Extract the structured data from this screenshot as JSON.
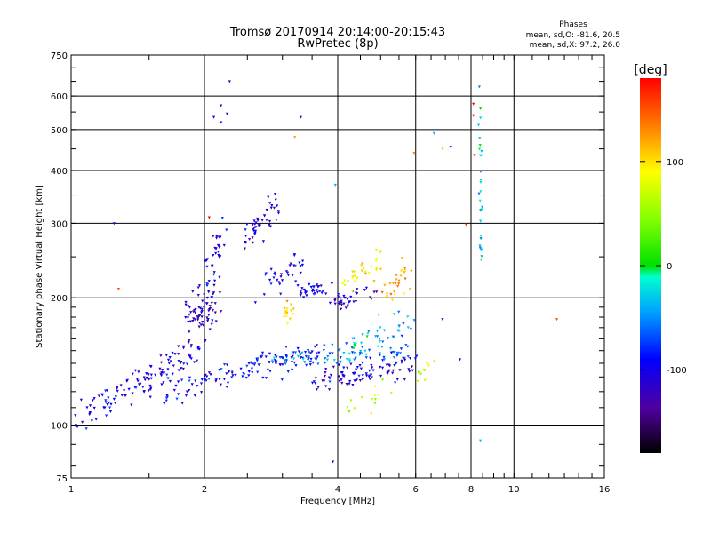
{
  "chart_data": {
    "type": "scatter",
    "title": "Tromsø 20170914 20:14:00-20:15:43",
    "subtitle": "RwPretec (8p)",
    "xlabel": "Frequency [MHz]",
    "ylabel": "Stationary phase Virtual Height [km]",
    "x_scale": "log",
    "y_scale": "log",
    "xlim": [
      1,
      16
    ],
    "ylim": [
      75,
      750
    ],
    "x_ticks": [
      "1",
      "2",
      "4",
      "6",
      "8",
      "10",
      "16"
    ],
    "y_ticks": [
      "75",
      "100",
      "200",
      "300",
      "400",
      "500",
      "600",
      "750"
    ],
    "grid": true,
    "stats": {
      "heading": "Phases",
      "line1": "mean, sd,O: -81.6, 20.5",
      "line2": "mean, sd,X:  97.2, 26.0"
    },
    "colorbar": {
      "label": "[deg]",
      "ticks": [
        "100",
        "0",
        "-100"
      ],
      "range": [
        -180,
        180
      ]
    },
    "clusters": [
      {
        "from": [
          1.05,
          105
        ],
        "to": [
          1.95,
          150
        ],
        "n": 130,
        "scatter": [
          0.025,
          0.04
        ],
        "phase": -105
      },
      {
        "from": [
          1.6,
          118
        ],
        "to": [
          3.6,
          150
        ],
        "n": 120,
        "scatter": [
          0.03,
          0.035
        ],
        "phase": -95
      },
      {
        "from": [
          2.6,
          142
        ],
        "to": [
          5.8,
          150
        ],
        "n": 80,
        "scatter": [
          0.03,
          0.03
        ],
        "phase": -60
      },
      {
        "from": [
          3.6,
          128
        ],
        "to": [
          5.8,
          138
        ],
        "n": 90,
        "scatter": [
          0.03,
          0.03
        ],
        "phase": -110
      },
      {
        "from": [
          1.85,
          170
        ],
        "to": [
          2.1,
          200
        ],
        "n": 70,
        "scatter": [
          0.03,
          0.05
        ],
        "phase": -115
      },
      {
        "from": [
          2.05,
          220
        ],
        "to": [
          2.2,
          280
        ],
        "n": 35,
        "scatter": [
          0.02,
          0.06
        ],
        "phase": -100
      },
      {
        "from": [
          2.5,
          280
        ],
        "to": [
          2.9,
          340
        ],
        "n": 45,
        "scatter": [
          0.02,
          0.04
        ],
        "phase": -110
      },
      {
        "from": [
          2.75,
          210
        ],
        "to": [
          3.3,
          240
        ],
        "n": 35,
        "scatter": [
          0.025,
          0.04
        ],
        "phase": -100
      },
      {
        "from": [
          3.3,
          205
        ],
        "to": [
          3.8,
          215
        ],
        "n": 30,
        "scatter": [
          0.02,
          0.02
        ],
        "phase": -105
      },
      {
        "from": [
          3.9,
          195
        ],
        "to": [
          4.8,
          205
        ],
        "n": 35,
        "scatter": [
          0.02,
          0.02
        ],
        "phase": -110
      },
      {
        "from": [
          4.2,
          215
        ],
        "to": [
          5.0,
          250
        ],
        "n": 30,
        "scatter": [
          0.03,
          0.04
        ],
        "phase": 95
      },
      {
        "from": [
          5.0,
          200
        ],
        "to": [
          5.8,
          230
        ],
        "n": 30,
        "scatter": [
          0.025,
          0.04
        ],
        "phase": 120
      },
      {
        "from": [
          3.0,
          175
        ],
        "to": [
          3.2,
          195
        ],
        "n": 15,
        "scatter": [
          0.02,
          0.03
        ],
        "phase": 100
      },
      {
        "from": [
          4.0,
          145
        ],
        "to": [
          5.8,
          175
        ],
        "n": 45,
        "scatter": [
          0.03,
          0.04
        ],
        "phase": -40
      },
      {
        "from": [
          8.4,
          230
        ],
        "to": [
          8.4,
          640
        ],
        "n": 30,
        "scatter": [
          0.004,
          0.03
        ],
        "phase": -30
      },
      {
        "from": [
          6.1,
          130
        ],
        "to": [
          6.5,
          140
        ],
        "n": 10,
        "scatter": [
          0.015,
          0.02
        ],
        "phase": 60
      },
      {
        "from": [
          4.3,
          110
        ],
        "to": [
          5.5,
          125
        ],
        "n": 14,
        "scatter": [
          0.03,
          0.03
        ],
        "phase": 70
      }
    ],
    "points": [
      {
        "x": 2.18,
        "y": 570,
        "phase": -110
      },
      {
        "x": 2.1,
        "y": 535,
        "phase": -100
      },
      {
        "x": 2.18,
        "y": 520,
        "phase": -95
      },
      {
        "x": 2.25,
        "y": 545,
        "phase": -120
      },
      {
        "x": 2.28,
        "y": 650,
        "phase": -130
      },
      {
        "x": 3.2,
        "y": 480,
        "phase": 120
      },
      {
        "x": 3.3,
        "y": 535,
        "phase": -105
      },
      {
        "x": 6.6,
        "y": 490,
        "phase": -40
      },
      {
        "x": 7.2,
        "y": 455,
        "phase": -110
      },
      {
        "x": 6.9,
        "y": 450,
        "phase": 110
      },
      {
        "x": 8.1,
        "y": 575,
        "phase": 180
      },
      {
        "x": 8.15,
        "y": 435,
        "phase": 175
      },
      {
        "x": 8.1,
        "y": 540,
        "phase": 175
      },
      {
        "x": 7.8,
        "y": 298,
        "phase": 160
      },
      {
        "x": 12.5,
        "y": 178,
        "phase": 150
      },
      {
        "x": 7.55,
        "y": 143,
        "phase": -100
      },
      {
        "x": 8.4,
        "y": 92,
        "phase": -30
      },
      {
        "x": 3.9,
        "y": 82,
        "phase": -120
      },
      {
        "x": 1.25,
        "y": 300,
        "phase": -110
      },
      {
        "x": 1.28,
        "y": 210,
        "phase": 150
      },
      {
        "x": 2.05,
        "y": 310,
        "phase": 180
      },
      {
        "x": 3.95,
        "y": 370,
        "phase": -40
      },
      {
        "x": 5.95,
        "y": 440,
        "phase": 130
      },
      {
        "x": 6.9,
        "y": 178,
        "phase": -110
      }
    ]
  }
}
